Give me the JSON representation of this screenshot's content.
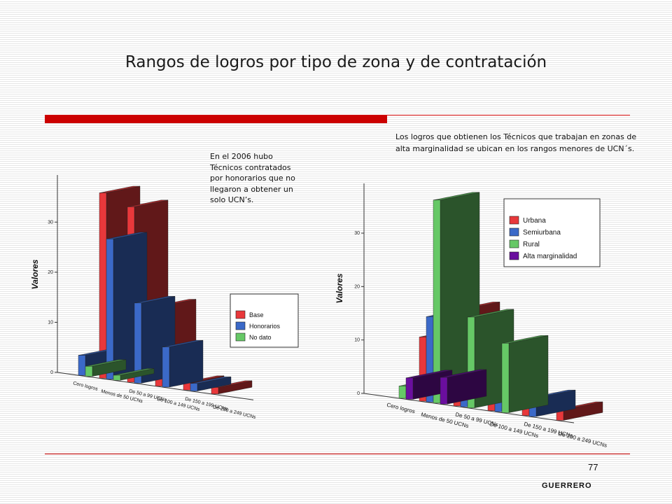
{
  "title": "Rangos de logros por tipo de zona y de contratación",
  "note_left": "En el 2006 hubo Técnicos contratados por honorarios que no llegaron a obtener un solo UCN’s.",
  "note_right": "Los logros que obtienen los Técnicos que trabajan en zonas de alta marginalidad se ubican en los rangos menores de UCN´s.",
  "page_number": "77",
  "footer": "GUERRERO",
  "colors": {
    "base": "#e8383b",
    "honorarios": "#3b69c8",
    "no_dato": "#66c866",
    "urbana": "#e8383b",
    "semiurbana": "#3b69c8",
    "rural": "#66c866",
    "alta_marginalidad": "#6a0e9e"
  },
  "chart_data": [
    {
      "type": "bar",
      "style": "3d-grouped",
      "ylabel": "Valores",
      "ylim": [
        0,
        38
      ],
      "yticks": [
        "0",
        "10",
        "20",
        "30"
      ],
      "categories": [
        "Cero logros",
        "Menos de 50 UCNs",
        "De 50 a 99 UCNs",
        "De 100 a 149 UCNs",
        "De 150 a 199 UCNs",
        "De 200 a 249 UCNs"
      ],
      "series": [
        {
          "name": "Base",
          "color": "#e8383b",
          "values": [
            0,
            37,
            35,
            16,
            1.5,
            1.3
          ]
        },
        {
          "name": "Honorarios",
          "color": "#3b69c8",
          "values": [
            4,
            28,
            16,
            8,
            1.5,
            0
          ]
        },
        {
          "name": "No dato",
          "color": "#66c866",
          "values": [
            2,
            1,
            0,
            0,
            0,
            0
          ]
        }
      ],
      "legend": "right"
    },
    {
      "type": "bar",
      "style": "3d-grouped",
      "ylabel": "Valores",
      "ylim": [
        0,
        38
      ],
      "yticks": [
        "0",
        "10",
        "20",
        "30"
      ],
      "categories": [
        "Cero logros",
        "Menos de 50 UCNs",
        "De 50 a 99 UCNs",
        "De 100 a 149 UCNs",
        "De 150 a 199 UCNs",
        "De 200 a 249 UCNs"
      ],
      "series": [
        {
          "name": "Urbana",
          "color": "#e8383b",
          "values": [
            0,
            12,
            18,
            5,
            2,
            2
          ]
        },
        {
          "name": "Semiurbana",
          "color": "#3b69c8",
          "values": [
            0,
            16,
            15,
            4,
            3.5,
            0
          ]
        },
        {
          "name": "Rural",
          "color": "#66c866",
          "values": [
            2.3,
            38,
            17,
            13,
            0,
            0
          ]
        },
        {
          "name": "Alta marginalidad",
          "color": "#6a0e9e",
          "values": [
            4,
            5,
            0,
            0,
            0,
            0
          ]
        }
      ],
      "legend": "top-right"
    }
  ]
}
